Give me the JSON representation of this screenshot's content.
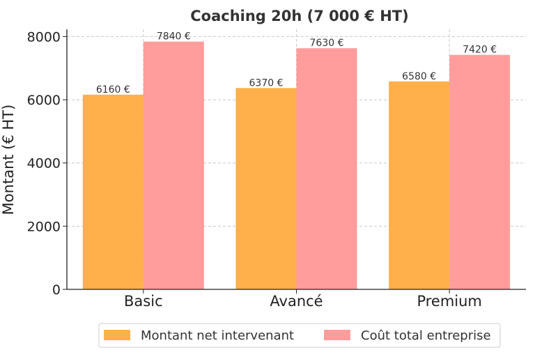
{
  "chart_data": {
    "type": "bar",
    "title": "Coaching 20h (7 000 € HT)",
    "xlabel": "",
    "ylabel": "Montant (€ HT)",
    "categories": [
      "Basic",
      "Avancé",
      "Premium"
    ],
    "series": [
      {
        "name": "Montant net intervenant",
        "values": [
          6160,
          6370,
          6580
        ],
        "labels": [
          "6160 €",
          "6370 €",
          "6580 €"
        ],
        "color": "#ffb04a"
      },
      {
        "name": "Coût total entreprise",
        "values": [
          7840,
          7630,
          7420
        ],
        "labels": [
          "7840 €",
          "7630 €",
          "7420 €"
        ],
        "color": "#ff9c9c"
      }
    ],
    "ylim": [
      0,
      8230
    ],
    "yticks": [
      0,
      2000,
      4000,
      6000,
      8000
    ],
    "grid": true,
    "legend_position": "bottom"
  }
}
